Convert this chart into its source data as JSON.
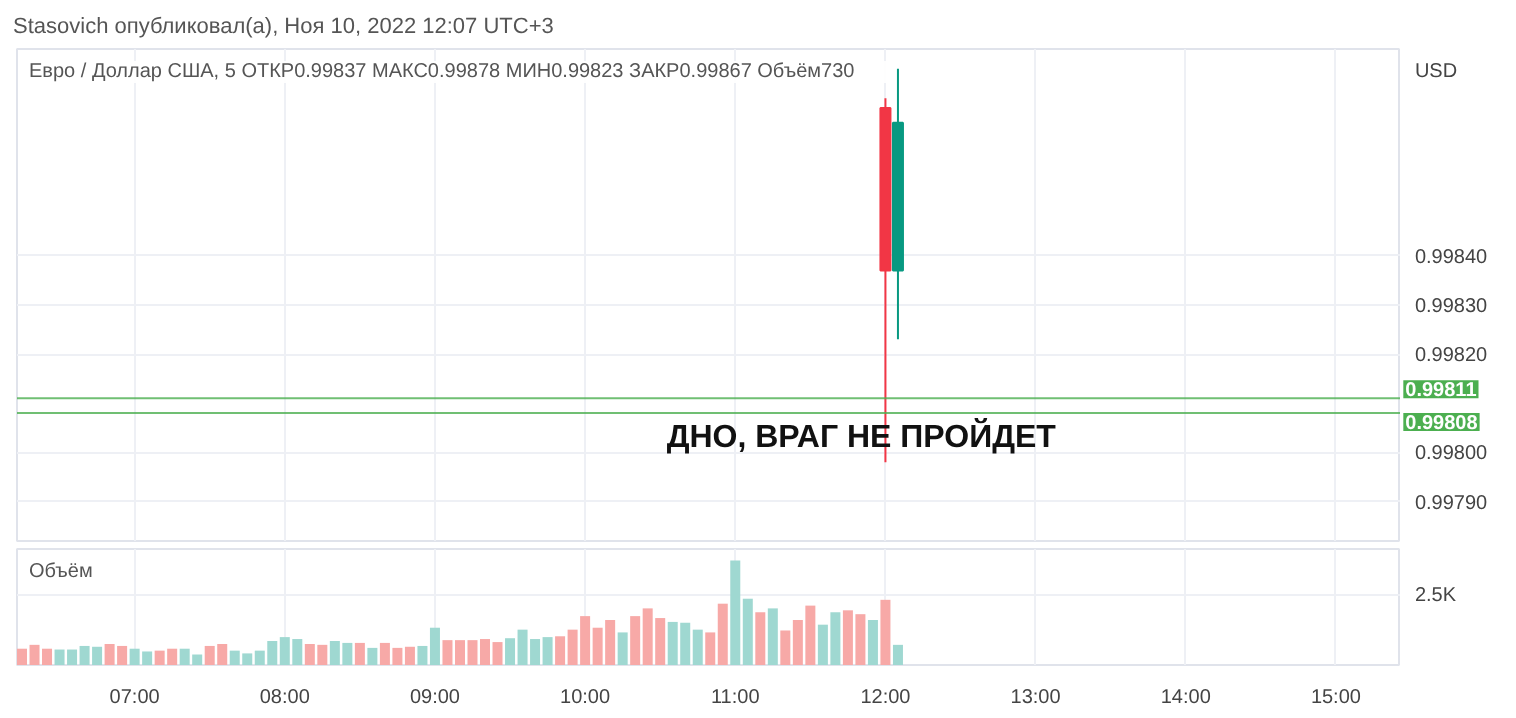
{
  "chart_data": [
    {
      "type": "candlestick",
      "title": "Stasovich опубликовал(а), Ноя 10, 2022 12:07 UTC+3",
      "subtitle": "Евро / Доллар США, 5   ОТКР0.99837  МАКС0.99878  МИН0.99823  ЗАКР0.99867  Объём730",
      "ylabel": "USD",
      "x": [
        "2022-11-10T12:00",
        "2022-11-10T12:05"
      ],
      "ohlc": [
        [
          0.9987,
          0.99872,
          0.99798,
          0.99837
        ],
        [
          0.99837,
          0.99878,
          0.99823,
          0.99867
        ]
      ],
      "colors": [
        "#f23645",
        "#089981"
      ],
      "xlim": [
        "2022-11-10T06:13",
        "2022-11-10T15:26"
      ],
      "xticks": [
        {
          "value": "2022-11-10T07:00",
          "label": null
        },
        {
          "value": "2022-11-10T08:00",
          "label": null
        },
        {
          "value": "2022-11-10T09:00",
          "label": null
        },
        {
          "value": "2022-11-10T10:00",
          "label": null
        },
        {
          "value": "2022-11-10T11:00",
          "label": null
        },
        {
          "value": "2022-11-10T12:00",
          "label": null
        },
        {
          "value": "2022-11-10T13:00",
          "label": null
        },
        {
          "value": "2022-11-10T14:00",
          "label": null
        },
        {
          "value": "2022-11-10T15:00",
          "label": null
        }
      ],
      "ylim": [
        0.99782,
        0.99882
      ],
      "yticks": [
        {
          "value": 0.9979,
          "label": "0.99790"
        },
        {
          "value": 0.998,
          "label": "0.99800"
        },
        {
          "value": 0.9982,
          "label": "0.99820"
        },
        {
          "value": 0.9983,
          "label": "0.99830"
        },
        {
          "value": 0.9984,
          "label": "0.99840"
        }
      ],
      "tick_labels": "y",
      "grid": true,
      "ref_lines": [
        {
          "axis": "y",
          "value": 0.99811,
          "label": "0.99811",
          "color": "#4caf50"
        },
        {
          "axis": "y",
          "value": 0.99808,
          "label": "0.99808",
          "color": "#4caf50"
        }
      ],
      "annotations": [
        "ДНО, ВРАГ НЕ ПРОЙДЕТ"
      ]
    },
    {
      "type": "bar",
      "title": "Объём",
      "x": [
        "2022-11-10T06:15",
        "2022-11-10T06:20",
        "2022-11-10T06:25",
        "2022-11-10T06:30",
        "2022-11-10T06:35",
        "2022-11-10T06:40",
        "2022-11-10T06:45",
        "2022-11-10T06:50",
        "2022-11-10T06:55",
        "2022-11-10T07:00",
        "2022-11-10T07:05",
        "2022-11-10T07:10",
        "2022-11-10T07:15",
        "2022-11-10T07:20",
        "2022-11-10T07:25",
        "2022-11-10T07:30",
        "2022-11-10T07:35",
        "2022-11-10T07:40",
        "2022-11-10T07:45",
        "2022-11-10T07:50",
        "2022-11-10T07:55",
        "2022-11-10T08:00",
        "2022-11-10T08:05",
        "2022-11-10T08:10",
        "2022-11-10T08:15",
        "2022-11-10T08:20",
        "2022-11-10T08:25",
        "2022-11-10T08:30",
        "2022-11-10T08:35",
        "2022-11-10T08:40",
        "2022-11-10T08:45",
        "2022-11-10T08:50",
        "2022-11-10T08:55",
        "2022-11-10T09:00",
        "2022-11-10T09:05",
        "2022-11-10T09:10",
        "2022-11-10T09:15",
        "2022-11-10T09:20",
        "2022-11-10T09:25",
        "2022-11-10T09:30",
        "2022-11-10T09:35",
        "2022-11-10T09:40",
        "2022-11-10T09:45",
        "2022-11-10T09:50",
        "2022-11-10T09:55",
        "2022-11-10T10:00",
        "2022-11-10T10:05",
        "2022-11-10T10:10",
        "2022-11-10T10:15",
        "2022-11-10T10:20",
        "2022-11-10T10:25",
        "2022-11-10T10:30",
        "2022-11-10T10:35",
        "2022-11-10T10:40",
        "2022-11-10T10:45",
        "2022-11-10T10:50",
        "2022-11-10T10:55",
        "2022-11-10T11:00",
        "2022-11-10T11:05",
        "2022-11-10T11:10",
        "2022-11-10T11:15",
        "2022-11-10T11:20",
        "2022-11-10T11:25",
        "2022-11-10T11:30",
        "2022-11-10T11:35",
        "2022-11-10T11:40",
        "2022-11-10T11:45",
        "2022-11-10T11:50",
        "2022-11-10T11:55",
        "2022-11-10T12:00",
        "2022-11-10T12:05"
      ],
      "values": [
        590,
        730,
        590,
        560,
        560,
        690,
        660,
        760,
        690,
        590,
        490,
        520,
        590,
        590,
        380,
        690,
        760,
        520,
        420,
        520,
        870,
        1010,
        940,
        760,
        730,
        870,
        800,
        800,
        620,
        800,
        620,
        660,
        690,
        1350,
        900,
        900,
        900,
        940,
        830,
        970,
        1280,
        940,
        1010,
        1040,
        1280,
        1770,
        1350,
        1630,
        1180,
        1770,
        2050,
        1700,
        1560,
        1530,
        1280,
        1180,
        2220,
        3780,
        2400,
        1910,
        2050,
        1250,
        1630,
        2150,
        1460,
        1910,
        1980,
        1840,
        1630,
        2360,
        730
      ],
      "colors": [
        "#f7a9a7",
        "#f7a9a7",
        "#f7a9a7",
        "#9fd8d1",
        "#9fd8d1",
        "#9fd8d1",
        "#9fd8d1",
        "#f7a9a7",
        "#f7a9a7",
        "#9fd8d1",
        "#9fd8d1",
        "#f7a9a7",
        "#f7a9a7",
        "#9fd8d1",
        "#9fd8d1",
        "#f7a9a7",
        "#f7a9a7",
        "#9fd8d1",
        "#9fd8d1",
        "#9fd8d1",
        "#9fd8d1",
        "#9fd8d1",
        "#9fd8d1",
        "#f7a9a7",
        "#f7a9a7",
        "#9fd8d1",
        "#9fd8d1",
        "#f7a9a7",
        "#9fd8d1",
        "#f7a9a7",
        "#f7a9a7",
        "#f7a9a7",
        "#9fd8d1",
        "#9fd8d1",
        "#f7a9a7",
        "#f7a9a7",
        "#f7a9a7",
        "#f7a9a7",
        "#f7a9a7",
        "#9fd8d1",
        "#9fd8d1",
        "#9fd8d1",
        "#9fd8d1",
        "#f7a9a7",
        "#f7a9a7",
        "#f7a9a7",
        "#f7a9a7",
        "#f7a9a7",
        "#9fd8d1",
        "#f7a9a7",
        "#f7a9a7",
        "#f7a9a7",
        "#9fd8d1",
        "#9fd8d1",
        "#9fd8d1",
        "#f7a9a7",
        "#f7a9a7",
        "#9fd8d1",
        "#9fd8d1",
        "#f7a9a7",
        "#9fd8d1",
        "#f7a9a7",
        "#f7a9a7",
        "#f7a9a7",
        "#9fd8d1",
        "#9fd8d1",
        "#f7a9a7",
        "#f7a9a7",
        "#9fd8d1",
        "#f7a9a7",
        "#9fd8d1"
      ],
      "xlim": [
        "2022-11-10T06:13",
        "2022-11-10T15:26"
      ],
      "xticks": [
        {
          "value": "2022-11-10T07:00",
          "label": "07:00"
        },
        {
          "value": "2022-11-10T08:00",
          "label": "08:00"
        },
        {
          "value": "2022-11-10T09:00",
          "label": "09:00"
        },
        {
          "value": "2022-11-10T10:00",
          "label": "10:00"
        },
        {
          "value": "2022-11-10T11:00",
          "label": "11:00"
        },
        {
          "value": "2022-11-10T12:00",
          "label": "12:00"
        },
        {
          "value": "2022-11-10T13:00",
          "label": "13:00"
        },
        {
          "value": "2022-11-10T14:00",
          "label": "14:00"
        },
        {
          "value": "2022-11-10T15:00",
          "label": "15:00"
        }
      ],
      "ylim": [
        0,
        4200
      ],
      "yticks": [
        {
          "value": 2500,
          "label": "2.5K"
        }
      ],
      "grid": true
    }
  ]
}
